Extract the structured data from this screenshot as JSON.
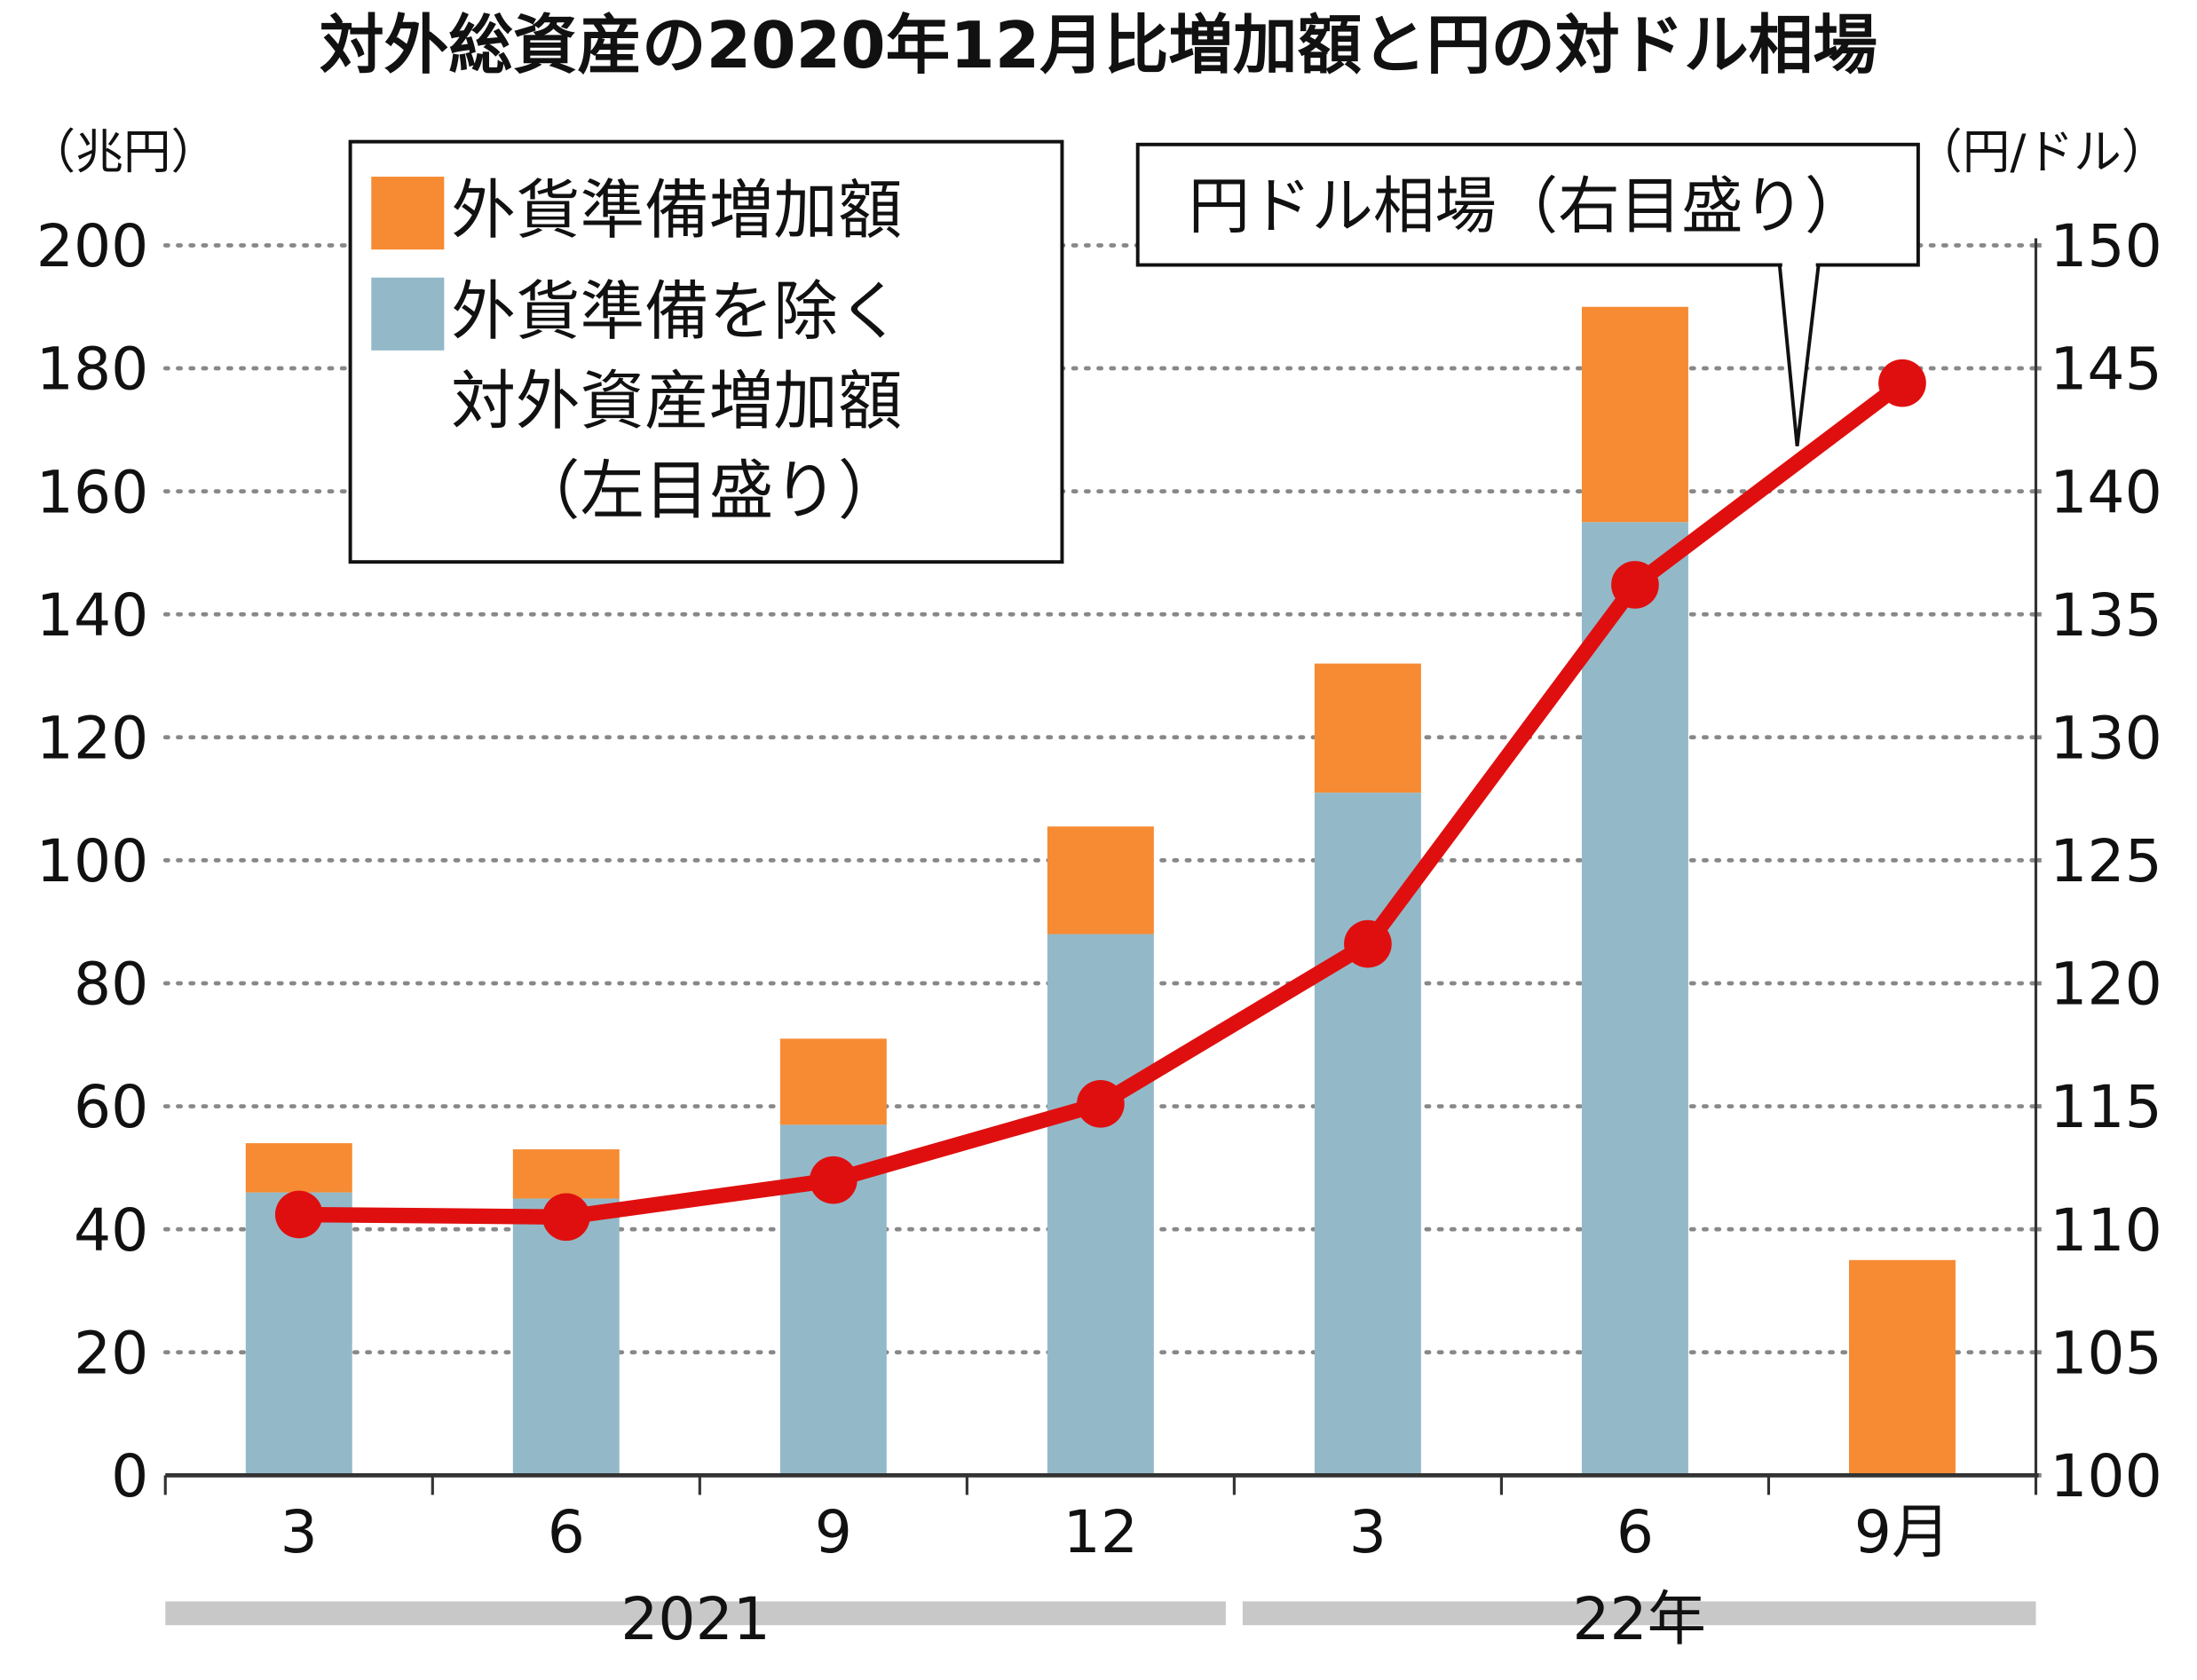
{
  "chart_data": {
    "type": "combo",
    "title": "対外総資産の2020年12月比増加額と円の対ドル相場",
    "y_label": "（兆円）",
    "y2_label": "（円/ドル）",
    "categories": [
      "3",
      "6",
      "9",
      "12",
      "3",
      "6",
      "9月"
    ],
    "groups": [
      {
        "label": "2021",
        "count": 4
      },
      {
        "label": "22年",
        "count": 3
      }
    ],
    "series": [
      {
        "name": "外貨準備を除く対外資産増加額（左目盛り）",
        "color": "#93b9c9",
        "type": "bar",
        "values": [
          46,
          45,
          57,
          88,
          111,
          155,
          null
        ]
      },
      {
        "name": "外貨準備増加額",
        "color": "#f68b33",
        "type": "bar",
        "values": [
          8,
          8,
          14,
          17.5,
          21,
          35,
          35
        ]
      },
      {
        "name": "円ドル相場（右目盛り）",
        "color": "#e00f0f",
        "type": "line",
        "axis": "y2",
        "values": [
          110.6,
          110.5,
          112.0,
          115.1,
          121.6,
          136.2,
          144.4
        ]
      }
    ],
    "ylim": [
      0,
      200
    ],
    "yticks": [
      0,
      20,
      40,
      60,
      80,
      100,
      120,
      140,
      160,
      180,
      200
    ],
    "y2lim": [
      100,
      150
    ],
    "y2ticks": [
      100,
      105,
      110,
      115,
      120,
      125,
      130,
      135,
      140,
      145,
      150
    ],
    "grid": true
  }
}
